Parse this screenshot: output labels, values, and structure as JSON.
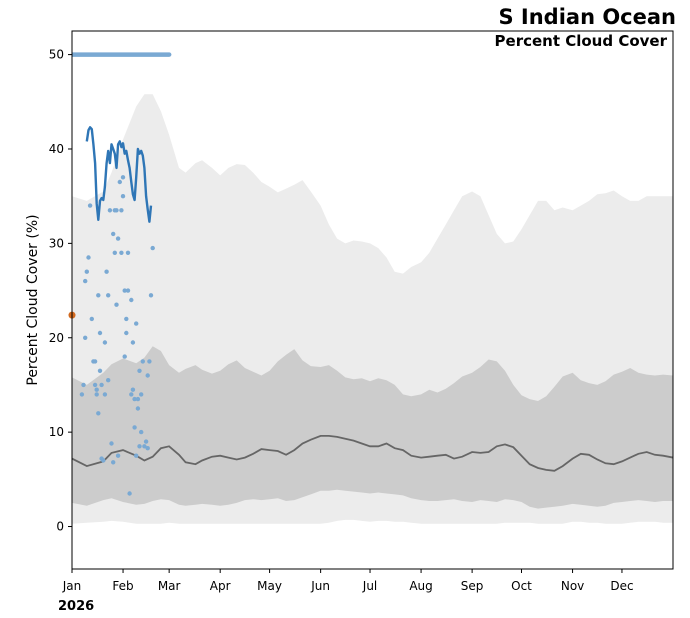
{
  "chart_data": {
    "type": "line",
    "title": "S Indian Ocean",
    "subtitle": "Percent Cloud Cover",
    "ylabel": "Percent Cloud Cover (%)",
    "xlabel": "",
    "year_label": "2026",
    "ylim": [
      -4.5,
      52.5
    ],
    "xlim": [
      1,
      366
    ],
    "y_ticks": [
      0,
      10,
      20,
      30,
      40,
      50
    ],
    "x_ticks": [
      {
        "label": "Jan",
        "day": 1
      },
      {
        "label": "Feb",
        "day": 32
      },
      {
        "label": "Mar",
        "day": 60
      },
      {
        "label": "Apr",
        "day": 91
      },
      {
        "label": "May",
        "day": 121
      },
      {
        "label": "Jun",
        "day": 152
      },
      {
        "label": "Jul",
        "day": 182
      },
      {
        "label": "Aug",
        "day": 213
      },
      {
        "label": "Sep",
        "day": 244
      },
      {
        "label": "Oct",
        "day": 274
      },
      {
        "label": "Nov",
        "day": 305
      },
      {
        "label": "Dec",
        "day": 335
      }
    ],
    "colors": {
      "outer_band": "#ececec",
      "inner_band": "#cccccc",
      "median": "#666666",
      "current_line": "#2f76b6",
      "current_points": "#7aa9d3",
      "max_line": "#7aa9d3",
      "marker": "#d2691e"
    },
    "climatology": {
      "days": [
        1,
        10,
        20,
        25,
        32,
        40,
        45,
        50,
        55,
        60,
        66,
        70,
        76,
        80,
        86,
        91,
        96,
        101,
        106,
        111,
        116,
        121,
        126,
        131,
        136,
        141,
        146,
        152,
        157,
        162,
        167,
        172,
        177,
        182,
        187,
        192,
        197,
        202,
        207,
        213,
        218,
        223,
        228,
        233,
        238,
        244,
        249,
        254,
        259,
        264,
        269,
        274,
        279,
        284,
        289,
        294,
        299,
        305,
        310,
        315,
        320,
        325,
        330,
        335,
        340,
        345,
        350,
        355,
        360,
        366
      ],
      "outer_low": [
        0.3,
        0.4,
        0.5,
        0.6,
        0.5,
        0.3,
        0.3,
        0.3,
        0.3,
        0.4,
        0.3,
        0.3,
        0.3,
        0.3,
        0.3,
        0.3,
        0.3,
        0.3,
        0.3,
        0.3,
        0.3,
        0.3,
        0.3,
        0.3,
        0.3,
        0.3,
        0.3,
        0.3,
        0.4,
        0.6,
        0.7,
        0.7,
        0.6,
        0.5,
        0.6,
        0.6,
        0.5,
        0.5,
        0.4,
        0.3,
        0.3,
        0.3,
        0.3,
        0.3,
        0.3,
        0.3,
        0.3,
        0.3,
        0.3,
        0.4,
        0.4,
        0.4,
        0.4,
        0.3,
        0.3,
        0.3,
        0.3,
        0.5,
        0.5,
        0.4,
        0.4,
        0.3,
        0.3,
        0.3,
        0.4,
        0.5,
        0.5,
        0.5,
        0.4,
        0.4
      ],
      "inner_low": [
        2.5,
        2.2,
        2.8,
        3.0,
        2.6,
        2.3,
        2.4,
        2.7,
        2.9,
        2.8,
        2.3,
        2.2,
        2.3,
        2.4,
        2.3,
        2.2,
        2.3,
        2.5,
        2.8,
        2.9,
        2.8,
        2.9,
        3.0,
        2.7,
        2.8,
        3.1,
        3.4,
        3.8,
        3.8,
        3.9,
        3.8,
        3.7,
        3.6,
        3.5,
        3.6,
        3.5,
        3.4,
        3.3,
        3.0,
        2.8,
        2.7,
        2.7,
        2.8,
        2.9,
        2.7,
        2.6,
        2.8,
        2.7,
        2.6,
        2.9,
        2.8,
        2.6,
        2.1,
        1.9,
        2.0,
        2.1,
        2.2,
        2.4,
        2.3,
        2.2,
        2.1,
        2.2,
        2.5,
        2.6,
        2.7,
        2.8,
        2.7,
        2.6,
        2.7,
        2.7
      ],
      "median": [
        7.2,
        6.4,
        6.9,
        7.8,
        8.1,
        7.5,
        7.0,
        7.4,
        8.3,
        8.5,
        7.6,
        6.8,
        6.6,
        7.0,
        7.4,
        7.5,
        7.3,
        7.1,
        7.3,
        7.7,
        8.2,
        8.1,
        8.0,
        7.6,
        8.1,
        8.8,
        9.2,
        9.6,
        9.6,
        9.5,
        9.3,
        9.1,
        8.8,
        8.5,
        8.5,
        8.8,
        8.3,
        8.1,
        7.5,
        7.3,
        7.4,
        7.5,
        7.6,
        7.2,
        7.4,
        7.9,
        7.8,
        7.9,
        8.5,
        8.7,
        8.4,
        7.5,
        6.6,
        6.2,
        6.0,
        5.9,
        6.4,
        7.2,
        7.7,
        7.6,
        7.1,
        6.7,
        6.6,
        6.9,
        7.3,
        7.7,
        7.9,
        7.6,
        7.5,
        7.3
      ],
      "inner_high": [
        15.8,
        15.0,
        16.3,
        17.2,
        17.8,
        17.3,
        17.9,
        19.1,
        18.6,
        17.1,
        16.3,
        16.7,
        17.1,
        16.6,
        16.2,
        16.5,
        17.2,
        17.6,
        16.8,
        16.4,
        16.0,
        16.5,
        17.5,
        18.2,
        18.8,
        17.6,
        17.0,
        16.9,
        17.1,
        16.5,
        15.8,
        15.6,
        15.7,
        15.4,
        15.7,
        15.5,
        15.0,
        14.0,
        13.8,
        14.0,
        14.5,
        14.2,
        14.6,
        15.2,
        15.9,
        16.3,
        16.9,
        17.7,
        17.5,
        16.5,
        15.0,
        13.9,
        13.5,
        13.3,
        13.8,
        14.8,
        15.9,
        16.3,
        15.5,
        15.2,
        15.0,
        15.4,
        16.1,
        16.4,
        16.8,
        16.3,
        16.1,
        16.0,
        16.1,
        16.0
      ],
      "outer_high": [
        35.0,
        34.5,
        35.5,
        37.5,
        41.0,
        44.5,
        45.8,
        45.8,
        44.0,
        41.5,
        38.0,
        37.5,
        38.5,
        38.8,
        38.0,
        37.2,
        38.0,
        38.4,
        38.3,
        37.5,
        36.5,
        36.0,
        35.4,
        35.8,
        36.2,
        36.7,
        35.5,
        34.0,
        32.0,
        30.5,
        30.0,
        30.3,
        30.2,
        30.0,
        29.5,
        28.5,
        27.0,
        26.8,
        27.5,
        28.0,
        29.0,
        30.5,
        32.0,
        33.5,
        35.0,
        35.5,
        35.0,
        33.0,
        31.0,
        30.0,
        30.2,
        31.5,
        33.0,
        34.5,
        34.5,
        33.5,
        33.8,
        33.5,
        34.0,
        34.5,
        35.2,
        35.3,
        35.6,
        35.0,
        34.5,
        34.5,
        35.0,
        35.0,
        35.0,
        35.0
      ]
    },
    "series": [
      {
        "name": "2026 smoothed",
        "x": [
          10,
          11,
          12,
          13,
          14,
          15,
          16,
          17,
          18,
          19,
          20,
          21,
          22,
          23,
          24,
          25,
          26,
          27,
          28,
          29,
          30,
          31,
          32,
          33,
          34,
          35,
          36,
          37,
          38,
          39,
          40,
          41,
          42,
          43,
          44,
          45,
          46,
          47,
          48,
          49,
          50,
          51,
          52,
          53,
          54,
          55,
          56,
          57,
          58
        ],
        "values": [
          40.8,
          42.0,
          42.3,
          42.1,
          40.5,
          38.5,
          34.2,
          32.5,
          34.5,
          34.8,
          34.6,
          36.0,
          38.5,
          39.8,
          38.5,
          40.5,
          40.0,
          39.5,
          38.0,
          40.5,
          40.8,
          40.2,
          40.6,
          39.5,
          39.8,
          38.8,
          38.0,
          36.5,
          35.2,
          34.6,
          37.0,
          40.0,
          39.5,
          39.8,
          39.3,
          38.0,
          35.0,
          33.6,
          32.3,
          34.0,
          36.2,
          37.0,
          37.5,
          36.0,
          35.5,
          33.2,
          32.5,
          34.0,
          32.2
        ],
        "display_range": [
          10,
          49
        ]
      },
      {
        "name": "2026 daily",
        "x": [
          7,
          8,
          9,
          9,
          10,
          11,
          12,
          13,
          14,
          15,
          15,
          16,
          16,
          17,
          17,
          18,
          18,
          19,
          19,
          20,
          21,
          21,
          22,
          23,
          23,
          24,
          25,
          26,
          26,
          27,
          27,
          28,
          28,
          29,
          29,
          30,
          31,
          31,
          32,
          32,
          33,
          33,
          34,
          34,
          35,
          35,
          36,
          37,
          37,
          38,
          38,
          39,
          39,
          40,
          40,
          41,
          41,
          42,
          42,
          43,
          43,
          44,
          45,
          46,
          47,
          47,
          48,
          49,
          50
        ],
        "values": [
          14.0,
          15.0,
          20.0,
          26.0,
          27.0,
          28.5,
          34.0,
          22.0,
          17.5,
          15.0,
          17.5,
          14.5,
          14.0,
          12.0,
          24.5,
          16.5,
          20.5,
          7.2,
          15.0,
          7.0,
          19.5,
          14.0,
          27.0,
          24.5,
          15.5,
          33.5,
          8.8,
          6.8,
          31.0,
          33.5,
          29.0,
          23.5,
          33.5,
          30.5,
          7.5,
          36.5,
          33.5,
          29.0,
          37.0,
          35.0,
          25.0,
          18.0,
          20.5,
          22.0,
          25.0,
          29.0,
          3.5,
          24.0,
          14.0,
          19.5,
          14.5,
          10.5,
          13.5,
          21.5,
          7.5,
          13.5,
          12.5,
          8.5,
          16.5,
          10.0,
          14.0,
          17.5,
          8.5,
          9.0,
          16.0,
          8.3,
          17.5,
          24.5,
          29.5
        ],
        "display_values": [
          14.0,
          15.0,
          20.0,
          26.0,
          27.0,
          28.5,
          34.0,
          22.0,
          17.5,
          15.0,
          17.5,
          14.5,
          14.0,
          12.0,
          24.5,
          16.5,
          20.5,
          7.2,
          15.0,
          7.0,
          19.5,
          14.0,
          27.0,
          24.5,
          15.5,
          33.5,
          8.8,
          6.8,
          31.0,
          33.5,
          29.0,
          23.5,
          33.5,
          30.5,
          7.5,
          36.5,
          33.5,
          29.0,
          37.0,
          35.0,
          25.0,
          18.0,
          20.5,
          22.0,
          25.0,
          29.0,
          3.5,
          24.0,
          14.0,
          19.5,
          14.5,
          10.5,
          13.5,
          21.5,
          7.5,
          13.5,
          12.5,
          8.5,
          16.5,
          10.0,
          14.0,
          17.5,
          8.5,
          9.0,
          16.0,
          8.3,
          17.5,
          24.5,
          29.5
        ]
      },
      {
        "name": "2026 daily maximum",
        "x": [
          1,
          60
        ],
        "values": [
          50,
          50
        ]
      }
    ],
    "marker": {
      "day": 1,
      "value": 22.4
    }
  }
}
